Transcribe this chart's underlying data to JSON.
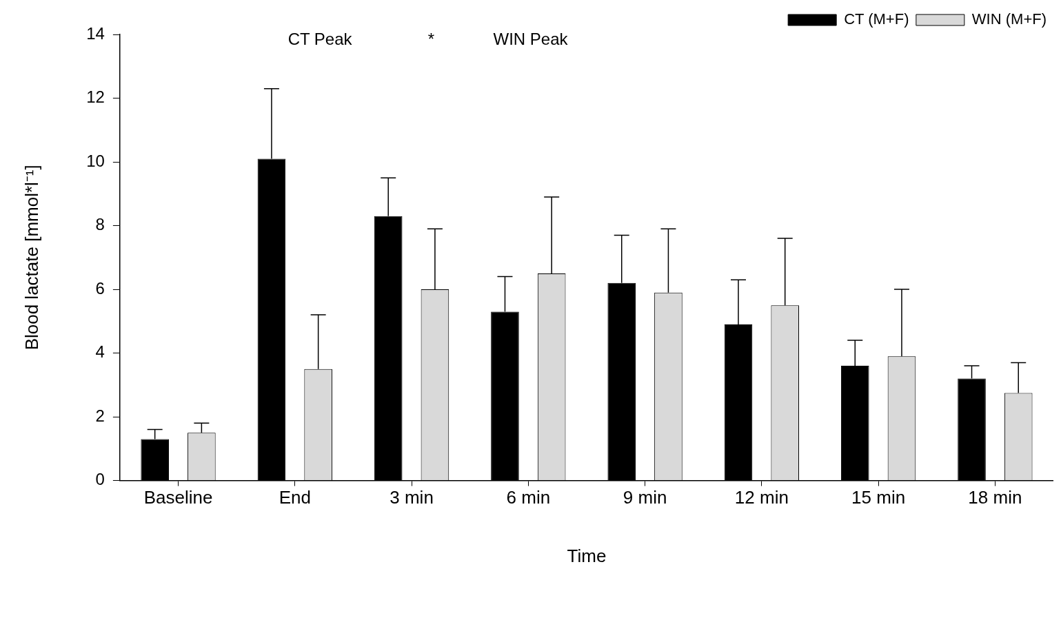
{
  "chart_data": {
    "type": "bar",
    "xlabel": "Time",
    "ylabel": "Blood lactate [mmol*l⁻¹]",
    "categories": [
      "Baseline",
      "End",
      "3 min",
      "6 min",
      "9 min",
      "12 min",
      "15 min",
      "18 min"
    ],
    "series": [
      {
        "name": "CT (M+F)",
        "color": "#000000",
        "values": [
          1.3,
          10.1,
          8.3,
          5.3,
          6.2,
          4.9,
          3.6,
          3.2
        ],
        "errors": [
          [
            1.3,
            1.6
          ],
          [
            10.1,
            12.3
          ],
          [
            8.3,
            9.5
          ],
          [
            5.3,
            6.4
          ],
          [
            6.2,
            7.7
          ],
          [
            4.9,
            6.3
          ],
          [
            3.6,
            4.4
          ],
          [
            3.2,
            3.6
          ]
        ]
      },
      {
        "name": "WIN (M+F)",
        "color": "#d9d9d9",
        "values": [
          1.5,
          3.5,
          6.0,
          6.5,
          5.9,
          5.5,
          3.9,
          2.75
        ],
        "errors": [
          [
            1.5,
            1.8
          ],
          [
            3.5,
            5.2
          ],
          [
            6.0,
            7.9
          ],
          [
            6.5,
            8.9
          ],
          [
            5.9,
            7.9
          ],
          [
            5.5,
            7.6
          ],
          [
            3.9,
            6.0
          ],
          [
            2.75,
            3.7
          ]
        ]
      }
    ],
    "ylim": [
      0,
      14
    ],
    "yticks": [
      0,
      2,
      4,
      6,
      8,
      10,
      12,
      14
    ],
    "grid": false,
    "legend": "top right",
    "annotations": [
      "CT Peak",
      "*",
      "WIN Peak"
    ]
  }
}
